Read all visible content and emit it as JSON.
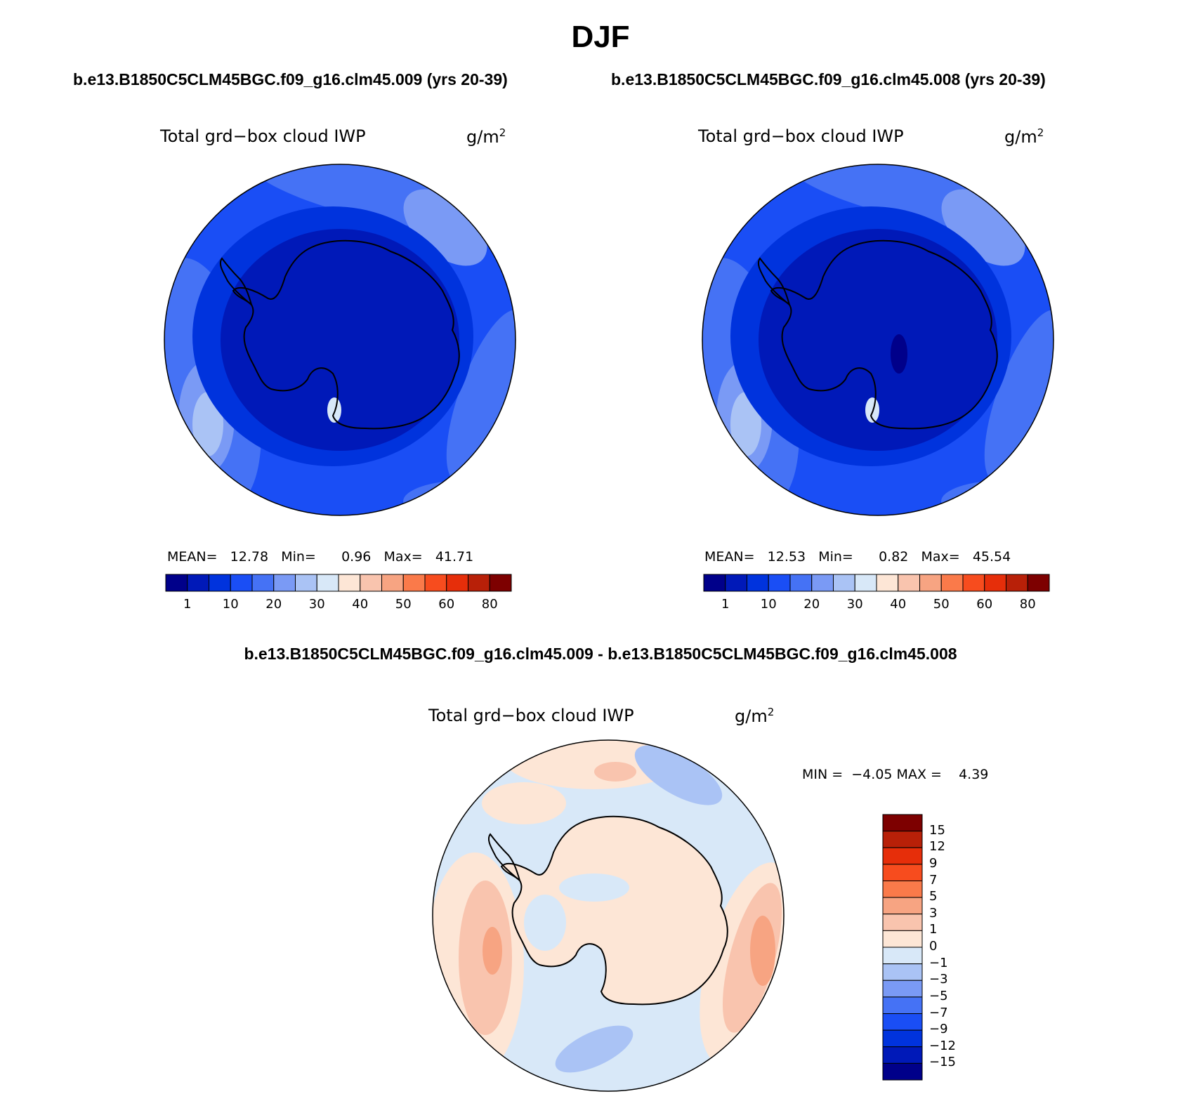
{
  "header": {
    "title": "DJF",
    "case_left": "b.e13.B1850C5CLM45BGC.f09_g16.clm45.009 (yrs 20-39)",
    "case_right": "b.e13.B1850C5CLM45BGC.f09_g16.clm45.008 (yrs 20-39)",
    "diff_title": "b.e13.B1850C5CLM45BGC.f09_g16.clm45.009 - b.e13.B1850C5CLM45BGC.f09_g16.clm45.008"
  },
  "panels": {
    "left": {
      "variable": "Total grd−box cloud IWP",
      "units_base": "g/m",
      "units_exp": "2",
      "mean_label": "MEAN=",
      "mean": "12.78",
      "min_label": "Min=",
      "min": "0.96",
      "max_label": "Max=",
      "max": "41.71"
    },
    "right": {
      "variable": "Total grd−box cloud IWP",
      "units_base": "g/m",
      "units_exp": "2",
      "mean_label": "MEAN=",
      "mean": "12.53",
      "min_label": "Min=",
      "min": "0.82",
      "max_label": "Max=",
      "max": "45.54"
    },
    "diff": {
      "variable": "Total grd−box cloud IWP",
      "units_base": "g/m",
      "units_exp": "2",
      "min_label": "MIN =",
      "min": "−4.05",
      "max_label": "MAX =",
      "max": "4.39"
    }
  },
  "colorbar_abs": {
    "colors": [
      "#00008a",
      "#0019b8",
      "#0033dd",
      "#1a4ef5",
      "#4572f5",
      "#7a9af5",
      "#aac3f5",
      "#d8e8f8",
      "#fde6d6",
      "#f9c4ae",
      "#f7a482",
      "#fa7a4a",
      "#f74c1e",
      "#e62e0a",
      "#b82008",
      "#7d0000"
    ],
    "ticks": [
      "1",
      "10",
      "20",
      "30",
      "40",
      "50",
      "60",
      "80"
    ]
  },
  "colorbar_diff": {
    "colors": [
      "#7d0000",
      "#b82008",
      "#e62e0a",
      "#f74c1e",
      "#fa7a4a",
      "#f7a482",
      "#f9c4ae",
      "#fde6d6",
      "#d8e8f8",
      "#aac3f5",
      "#7a9af5",
      "#4572f5",
      "#1a4ef5",
      "#0033dd",
      "#0019b8",
      "#00008a"
    ],
    "ticks": [
      "15",
      "12",
      "9",
      "7",
      "5",
      "3",
      "1",
      "0",
      "−1",
      "−3",
      "−5",
      "−7",
      "−9",
      "−12",
      "−15"
    ]
  }
}
